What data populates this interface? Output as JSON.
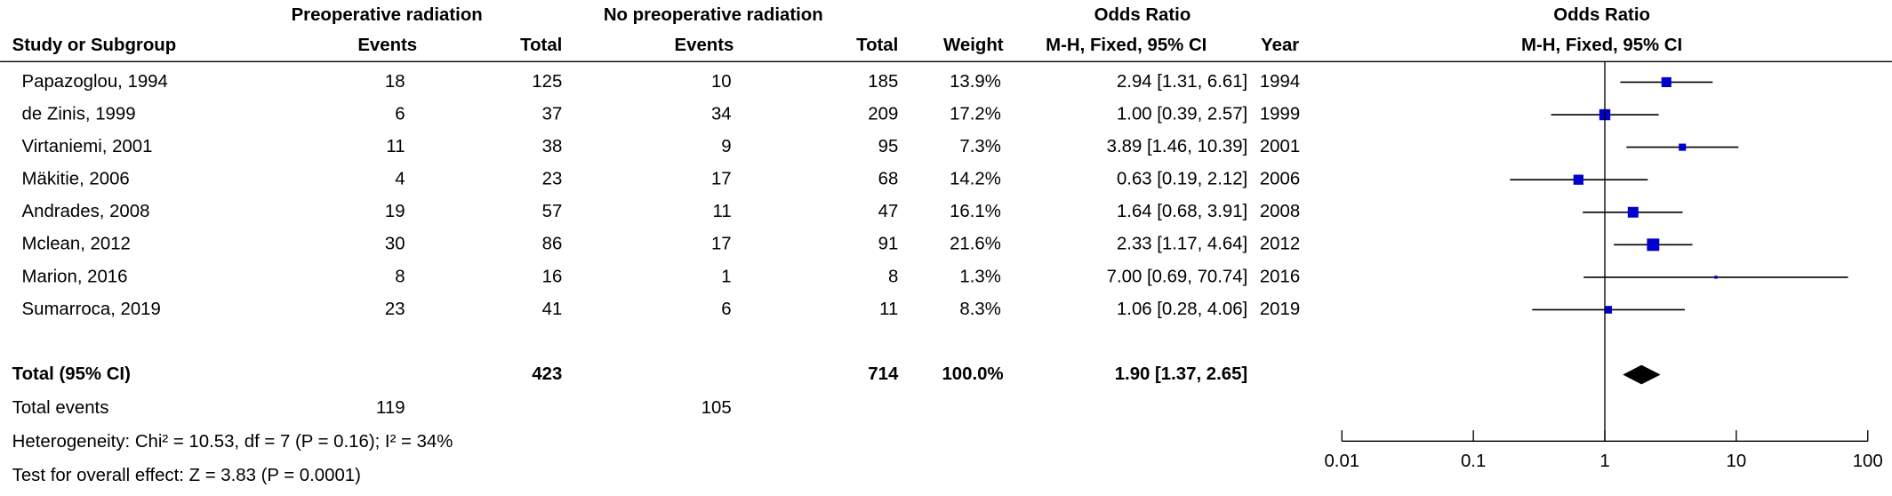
{
  "chart_data": {
    "type": "forest",
    "group_headers": [
      "Preoperative radiation",
      "No preoperative radiation",
      "Odds Ratio",
      "Odds Ratio"
    ],
    "columns": [
      "Study or Subgroup",
      "Events",
      "Total",
      "Events",
      "Total",
      "Weight",
      "M-H, Fixed, 95% CI",
      "Year",
      "M-H, Fixed, 95% CI"
    ],
    "categories": [
      "Papazoglou, 1994",
      "de Zinis, 1999",
      "Virtaniemi, 2001",
      "Mäkitie, 2006",
      "Andrades, 2008",
      "Mclean, 2012",
      "Marion, 2016",
      "Sumarroca, 2019"
    ],
    "exp_events": [
      18,
      6,
      11,
      4,
      19,
      30,
      8,
      23
    ],
    "exp_total": [
      125,
      37,
      38,
      23,
      57,
      86,
      16,
      41
    ],
    "ctl_events": [
      10,
      34,
      9,
      17,
      11,
      17,
      1,
      6
    ],
    "ctl_total": [
      185,
      209,
      95,
      68,
      47,
      91,
      8,
      11
    ],
    "weights": [
      13.9,
      17.2,
      7.3,
      14.2,
      16.1,
      21.6,
      1.3,
      8.3
    ],
    "weight_labels": [
      "13.9%",
      "17.2%",
      "7.3%",
      "14.2%",
      "16.1%",
      "21.6%",
      "1.3%",
      "8.3%"
    ],
    "values": [
      2.94,
      1.0,
      3.89,
      0.63,
      1.64,
      2.33,
      7.0,
      1.06
    ],
    "ci_lower": [
      1.31,
      0.39,
      1.46,
      0.19,
      0.68,
      1.17,
      0.69,
      0.28
    ],
    "ci_upper": [
      6.61,
      2.57,
      10.39,
      2.12,
      3.91,
      4.64,
      70.74,
      4.06
    ],
    "value_labels": [
      "2.94 [1.31, 6.61]",
      "1.00 [0.39, 2.57]",
      "3.89 [1.46, 10.39]",
      "0.63 [0.19, 2.12]",
      "1.64 [0.68, 3.91]",
      "2.33 [1.17, 4.64]",
      "7.00 [0.69, 70.74]",
      "1.06 [0.28, 4.06]"
    ],
    "years": [
      1994,
      1999,
      2001,
      2006,
      2008,
      2012,
      2016,
      2019
    ],
    "total": {
      "label": "Total (95% CI)",
      "exp_total": 423,
      "ctl_total": 714,
      "weight_label": "100.0%",
      "value": 1.9,
      "ci_lower": 1.37,
      "ci_upper": 2.65,
      "value_label": "1.90 [1.37, 2.65]"
    },
    "total_events": {
      "label": "Total events",
      "exp": 119,
      "ctl": 105
    },
    "heterogeneity": "Heterogeneity: Chi² = 10.53, df = 7 (P = 0.16); I² = 34%",
    "overall_effect": "Test for overall effect: Z = 3.83 (P = 0.0001)",
    "log_x": true,
    "xlim": [
      0.01,
      100
    ],
    "xticks": [
      0.01,
      0.1,
      1,
      10,
      100
    ],
    "color": "#0000cc"
  }
}
